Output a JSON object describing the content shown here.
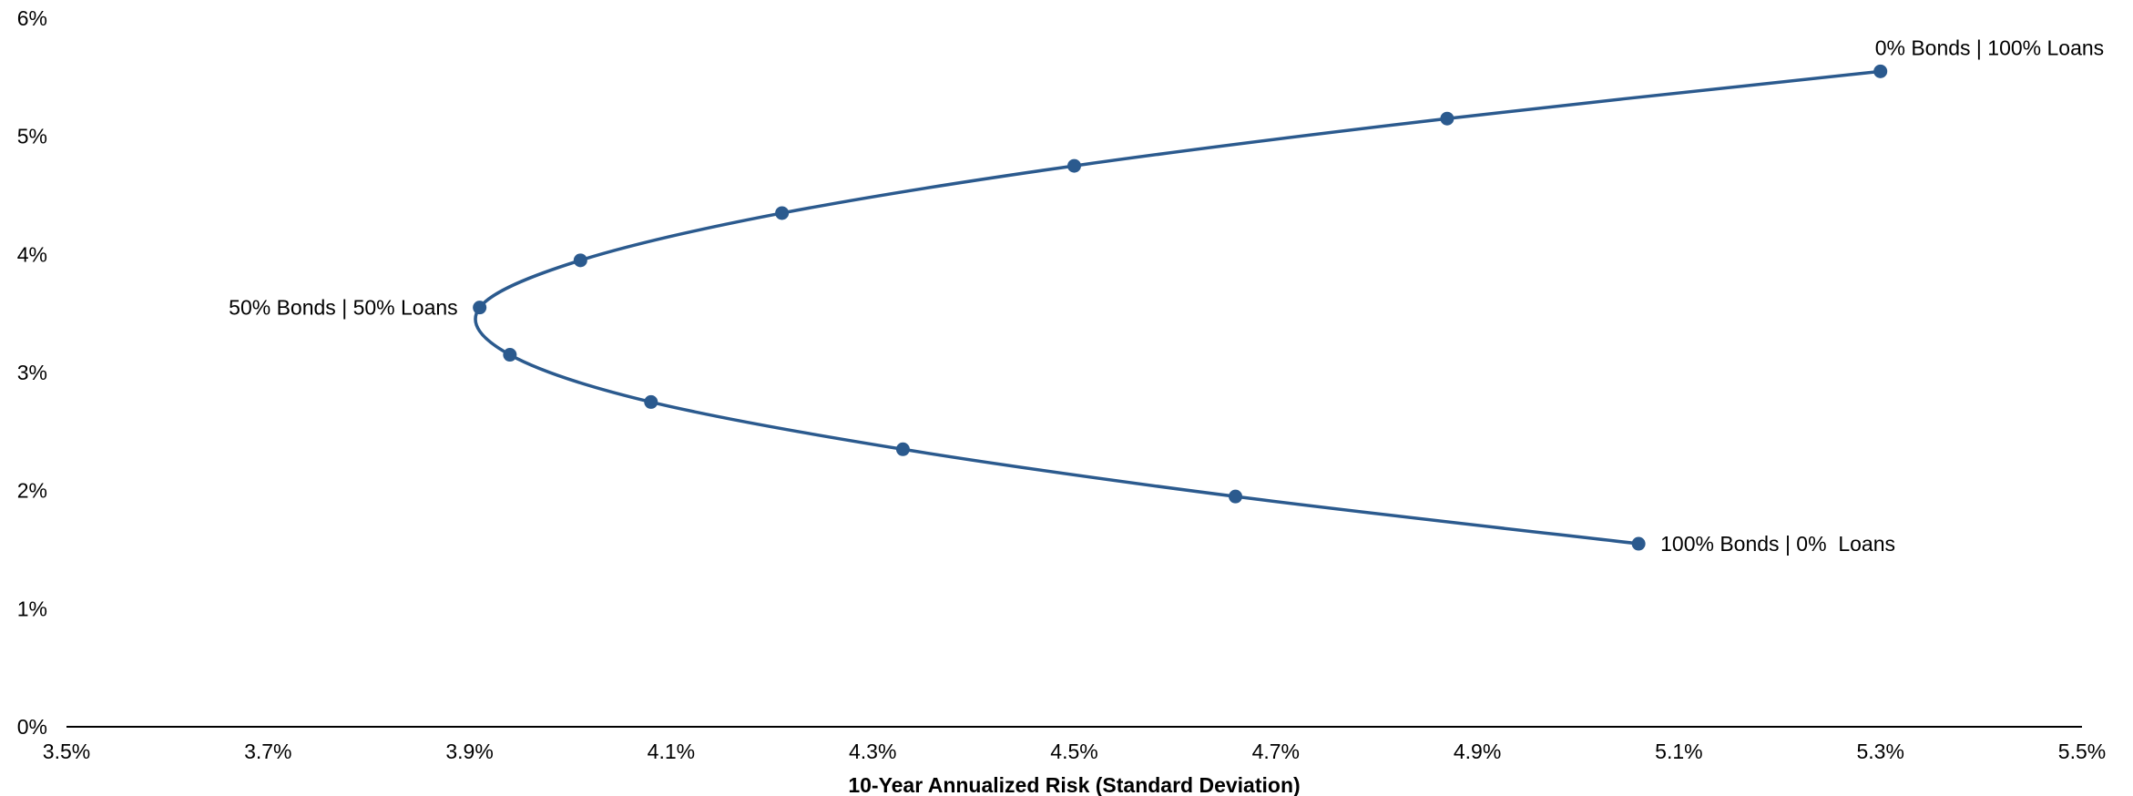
{
  "chart_data": {
    "type": "scatter",
    "title": "",
    "xlabel": "10-Year Annualized Risk (Standard Deviation)",
    "ylabel": "",
    "xlim": [
      3.5,
      5.5
    ],
    "ylim": [
      0,
      6
    ],
    "x_ticks": [
      "3.5%",
      "3.7%",
      "3.9%",
      "4.1%",
      "4.3%",
      "4.5%",
      "4.7%",
      "4.9%",
      "5.1%",
      "5.3%",
      "5.5%"
    ],
    "y_ticks": [
      "0%",
      "1%",
      "2%",
      "3%",
      "4%",
      "5%",
      "6%"
    ],
    "grid": false,
    "legend": "none",
    "color": "#2b5a8e",
    "series": [
      {
        "points": [
          {
            "x": 5.06,
            "y": 1.55
          },
          {
            "x": 4.66,
            "y": 1.95
          },
          {
            "x": 4.33,
            "y": 2.35
          },
          {
            "x": 4.08,
            "y": 2.75
          },
          {
            "x": 3.94,
            "y": 3.15
          },
          {
            "x": 3.91,
            "y": 3.55
          },
          {
            "x": 4.01,
            "y": 3.95
          },
          {
            "x": 4.21,
            "y": 4.35
          },
          {
            "x": 4.5,
            "y": 4.75
          },
          {
            "x": 4.87,
            "y": 5.15
          },
          {
            "x": 5.3,
            "y": 5.55
          }
        ]
      }
    ],
    "annotations": [
      {
        "text": "0% Bonds | 100% Loans",
        "x": 5.3,
        "y": 5.55,
        "anchor": "above"
      },
      {
        "text": "50% Bonds | 50% Loans",
        "x": 3.91,
        "y": 3.55,
        "anchor": "left"
      },
      {
        "text": "100% Bonds | 0%  Loans",
        "x": 5.06,
        "y": 1.55,
        "anchor": "right"
      }
    ]
  }
}
